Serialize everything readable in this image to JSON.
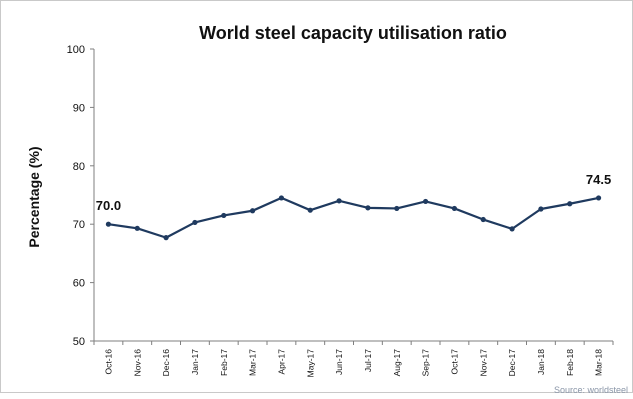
{
  "chart_data": {
    "type": "line",
    "title": "World steel capacity utilisation ratio",
    "xlabel": "",
    "ylabel": "Percentage (%)",
    "ylim": [
      50,
      100
    ],
    "yticks": [
      50,
      60,
      70,
      80,
      90,
      100
    ],
    "grid": false,
    "categories": [
      "Oct-16",
      "Nov-16",
      "Dec-16",
      "Jan-17",
      "Feb-17",
      "Mar-17",
      "Apr-17",
      "May-17",
      "Jun-17",
      "Jul-17",
      "Aug-17",
      "Sep-17",
      "Oct-17",
      "Nov-17",
      "Dec-17",
      "Jan-18",
      "Feb-18",
      "Mar-18"
    ],
    "series": [
      {
        "values": [
          70.0,
          69.3,
          67.7,
          70.3,
          71.5,
          72.3,
          74.5,
          72.4,
          74.0,
          72.8,
          72.7,
          73.9,
          72.7,
          70.8,
          69.2,
          72.6,
          73.5,
          74.5
        ],
        "color": "#1f3a5f"
      }
    ],
    "data_labels": [
      {
        "index": 0,
        "text": "70.0"
      },
      {
        "index": 17,
        "text": "74.5"
      }
    ],
    "source": "Source: worldsteel"
  }
}
